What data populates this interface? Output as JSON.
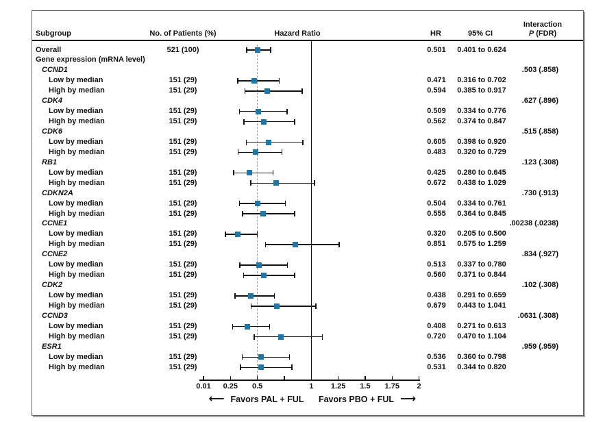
{
  "header": {
    "subgroup": "Subgroup",
    "patients": "No. of Patients (%)",
    "hazard_ratio": "Hazard Ratio",
    "hr": "HR",
    "ci": "95% CI",
    "interaction_line1": "Interaction",
    "interaction_p": "P",
    "interaction_rest": " (FDR)"
  },
  "colors": {
    "marker": "#1c78ab",
    "line": "#111111",
    "dashed_reference": "#9b9b9b",
    "border": "#5f5f5f"
  },
  "axis": {
    "ticks": [
      {
        "value": 0.01,
        "label": "0.01"
      },
      {
        "value": 0.25,
        "label": "0.25"
      },
      {
        "value": 0.5,
        "label": "0.5"
      },
      {
        "value": 0.75,
        "label": ""
      },
      {
        "value": 1,
        "label": "1"
      },
      {
        "value": 1.25,
        "label": "1.25"
      },
      {
        "value": 1.5,
        "label": "1.5"
      },
      {
        "value": 1.75,
        "label": "1.75"
      },
      {
        "value": 2,
        "label": "2"
      }
    ],
    "reference_dashed": 0.5,
    "reference_solid": 1,
    "favors_left": "Favors PAL + FUL",
    "favors_right": "Favors PBO + FUL",
    "arrow_left": "⟵",
    "arrow_right": "⟶"
  },
  "chart_data": {
    "type": "forest",
    "marker": "square",
    "x_scale": "linear 0.25-2 with compressed 0.01 left end",
    "rows": [
      {
        "label": "Overall",
        "indent": 0,
        "patients": "521 (100)",
        "hr": "0.501",
        "lo": 0.401,
        "hi": 0.624,
        "ci": "0.401 to 0.624"
      },
      {
        "label": "Gene expression (mRNA level)",
        "indent": 0
      },
      {
        "label": "CCND1",
        "indent": 1,
        "p": ".503 (.858)"
      },
      {
        "label": "Low by median",
        "indent": 2,
        "patients": "151 (29)",
        "hr": "0.471",
        "lo": 0.316,
        "hi": 0.702,
        "ci": "0.316 to 0.702"
      },
      {
        "label": "High by median",
        "indent": 2,
        "patients": "151 (29)",
        "hr": "0.594",
        "lo": 0.385,
        "hi": 0.917,
        "ci": "0.385 to 0.917"
      },
      {
        "label": "CDK4",
        "indent": 1,
        "p": ".627 (.896)"
      },
      {
        "label": "Low by median",
        "indent": 2,
        "patients": "151 (29)",
        "hr": "0.509",
        "lo": 0.334,
        "hi": 0.776,
        "ci": "0.334 to 0.776"
      },
      {
        "label": "High by median",
        "indent": 2,
        "patients": "151 (29)",
        "hr": "0.562",
        "lo": 0.374,
        "hi": 0.847,
        "ci": "0.374 to 0.847"
      },
      {
        "label": "CDK6",
        "indent": 1,
        "p": ".515 (.858)"
      },
      {
        "label": "Low by median",
        "indent": 2,
        "patients": "151 (29)",
        "hr": "0.605",
        "lo": 0.398,
        "hi": 0.92,
        "ci": "0.398 to 0.920"
      },
      {
        "label": "High by median",
        "indent": 2,
        "patients": "151 (29)",
        "hr": "0.483",
        "lo": 0.32,
        "hi": 0.729,
        "ci": "0.320 to 0.729"
      },
      {
        "label": "RB1",
        "indent": 1,
        "p": ".123 (.308)"
      },
      {
        "label": "Low by median",
        "indent": 2,
        "patients": "151 (29)",
        "hr": "0.425",
        "lo": 0.28,
        "hi": 0.645,
        "ci": "0.280 to 0.645"
      },
      {
        "label": "High by median",
        "indent": 2,
        "patients": "151 (29)",
        "hr": "0.672",
        "lo": 0.438,
        "hi": 1.029,
        "ci": "0.438 to 1.029"
      },
      {
        "label": "CDKN2A",
        "indent": 1,
        "p": ".730 (.913)"
      },
      {
        "label": "Low by median",
        "indent": 2,
        "patients": "151 (29)",
        "hr": "0.504",
        "lo": 0.334,
        "hi": 0.761,
        "ci": "0.334 to 0.761"
      },
      {
        "label": "High by median",
        "indent": 2,
        "patients": "151 (29)",
        "hr": "0.555",
        "lo": 0.364,
        "hi": 0.845,
        "ci": "0.364 to 0.845"
      },
      {
        "label": "CCNE1",
        "indent": 1,
        "p": ".00238 (.0238)"
      },
      {
        "label": "Low by median",
        "indent": 2,
        "patients": "151 (29)",
        "hr": "0.320",
        "lo": 0.205,
        "hi": 0.5,
        "ci": "0.205 to 0.500"
      },
      {
        "label": "High by median",
        "indent": 2,
        "patients": "151 (29)",
        "hr": "0.851",
        "lo": 0.575,
        "hi": 1.259,
        "ci": "0.575 to 1.259"
      },
      {
        "label": "CCNE2",
        "indent": 1,
        "p": ".834 (.927)"
      },
      {
        "label": "Low by median",
        "indent": 2,
        "patients": "151 (29)",
        "hr": "0.513",
        "lo": 0.337,
        "hi": 0.78,
        "ci": "0.337 to 0.780"
      },
      {
        "label": "High by median",
        "indent": 2,
        "patients": "151 (29)",
        "hr": "0.560",
        "lo": 0.371,
        "hi": 0.844,
        "ci": "0.371 to 0.844"
      },
      {
        "label": "CDK2",
        "indent": 1,
        "p": ".102 (.308)"
      },
      {
        "label": "Low by median",
        "indent": 2,
        "patients": "151 (29)",
        "hr": "0.438",
        "lo": 0.291,
        "hi": 0.659,
        "ci": "0.291 to 0.659"
      },
      {
        "label": "High by median",
        "indent": 2,
        "patients": "151 (29)",
        "hr": "0.679",
        "lo": 0.443,
        "hi": 1.041,
        "ci": "0.443 to 1.041"
      },
      {
        "label": "CCND3",
        "indent": 1,
        "p": ".0631 (.308)"
      },
      {
        "label": "Low by median",
        "indent": 2,
        "patients": "151 (29)",
        "hr": "0.408",
        "lo": 0.271,
        "hi": 0.613,
        "ci": "0.271 to 0.613"
      },
      {
        "label": "High by median",
        "indent": 2,
        "patients": "151 (29)",
        "hr": "0.720",
        "lo": 0.47,
        "hi": 1.104,
        "ci": "0.470 to 1.104"
      },
      {
        "label": "ESR1",
        "indent": 1,
        "p": ".959 (.959)"
      },
      {
        "label": "Low by median",
        "indent": 2,
        "patients": "151 (29)",
        "hr": "0.536",
        "lo": 0.36,
        "hi": 0.798,
        "ci": "0.360 to 0.798"
      },
      {
        "label": "High by median",
        "indent": 2,
        "patients": "151 (29)",
        "hr": "0.531",
        "lo": 0.344,
        "hi": 0.82,
        "ci": "0.344 to 0.820"
      }
    ]
  }
}
